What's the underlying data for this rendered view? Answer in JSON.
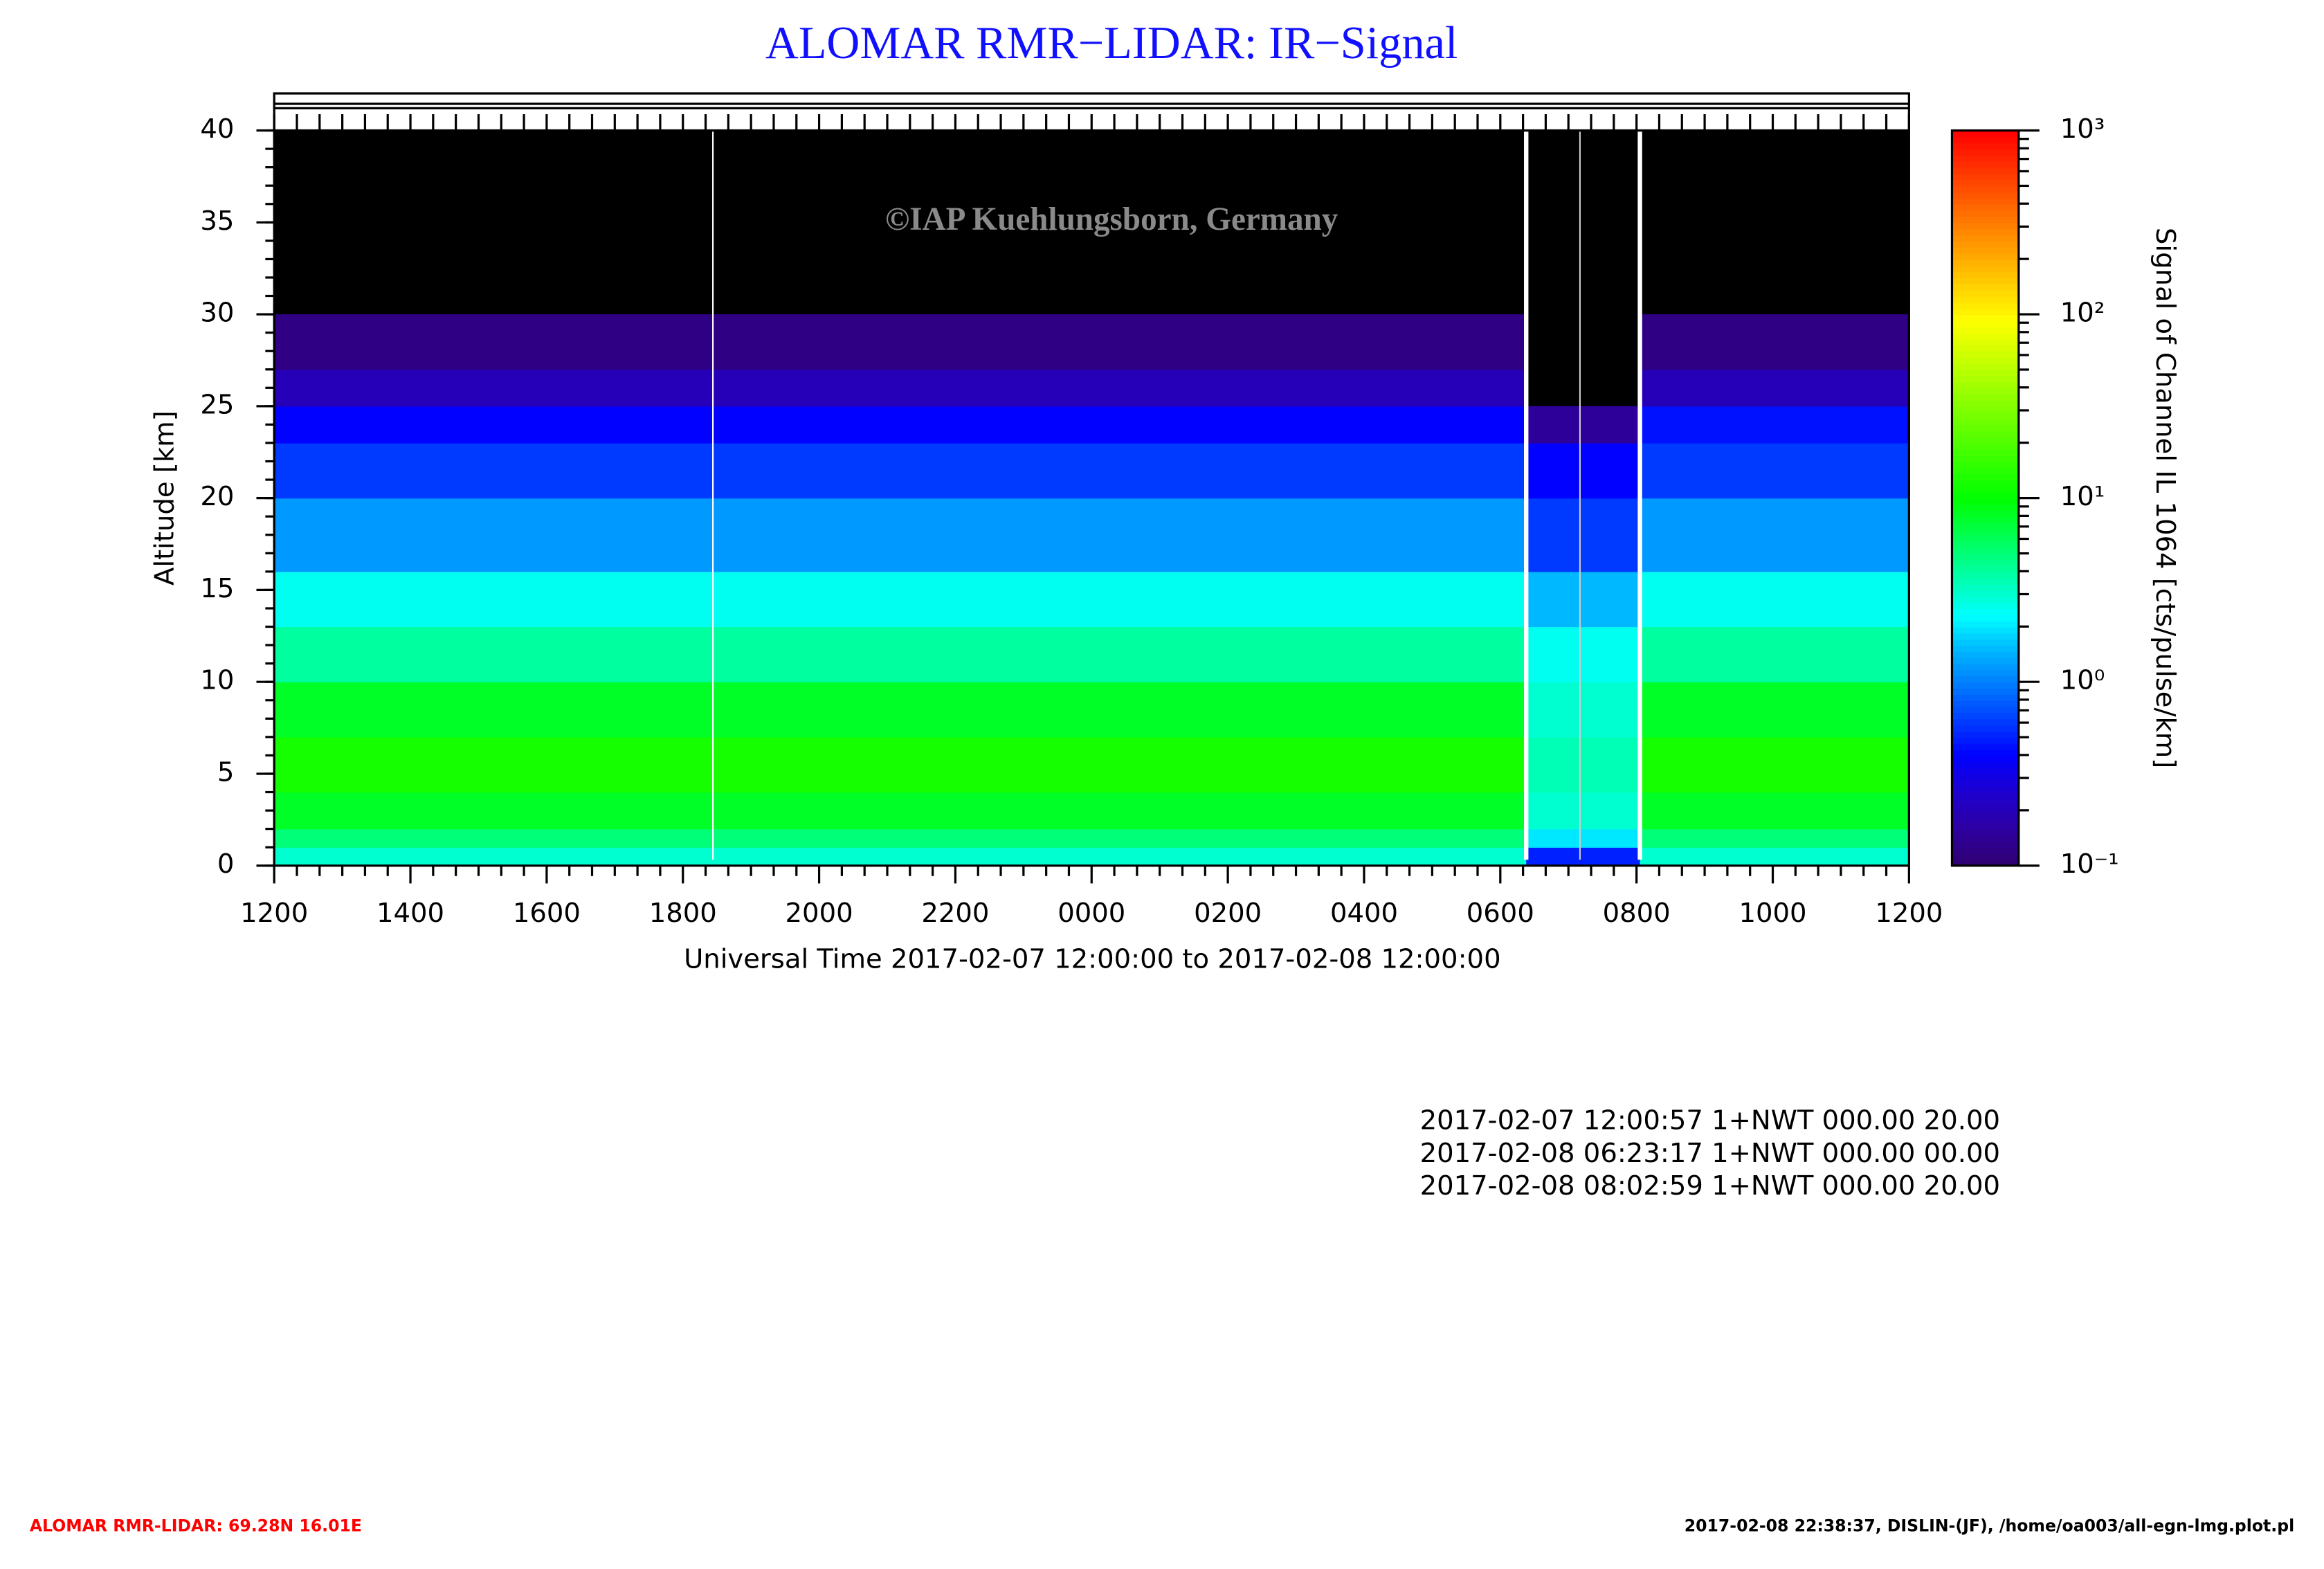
{
  "chart_data": {
    "type": "heatmap",
    "title": "ALOMAR RMR−LIDAR: IR−Signal",
    "watermark": "©IAP Kuehlungsborn, Germany",
    "x_label": "Universal Time 2017-02-07 12:00:00 to 2017-02-08 12:00:00",
    "y_label": "Altitude [km]",
    "colorbar_label": "Signal of Channel IL 1064 [cts/pulse/km]",
    "xlim": [
      0,
      24
    ],
    "xticks": [
      {
        "value": 0,
        "label": "1200"
      },
      {
        "value": 2,
        "label": "1400"
      },
      {
        "value": 4,
        "label": "1600"
      },
      {
        "value": 6,
        "label": "1800"
      },
      {
        "value": 8,
        "label": "2000"
      },
      {
        "value": 10,
        "label": "2200"
      },
      {
        "value": 12,
        "label": "0000"
      },
      {
        "value": 14,
        "label": "0200"
      },
      {
        "value": 16,
        "label": "0400"
      },
      {
        "value": 18,
        "label": "0600"
      },
      {
        "value": 20,
        "label": "0800"
      },
      {
        "value": 22,
        "label": "1000"
      },
      {
        "value": 24,
        "label": "1200"
      }
    ],
    "ylim": [
      0,
      40
    ],
    "yticks": [
      0,
      5,
      10,
      15,
      20,
      25,
      30,
      35,
      40
    ],
    "clim": [
      0.1,
      1000
    ],
    "log_color": true,
    "cticks": [
      {
        "value": 0.1,
        "label": "10⁻¹"
      },
      {
        "value": 1,
        "label": "10⁰"
      },
      {
        "value": 10,
        "label": "10¹"
      },
      {
        "value": 100,
        "label": "10²"
      },
      {
        "value": 1000,
        "label": "10³"
      }
    ],
    "x": [
      0,
      18.38,
      20.05,
      24
    ],
    "y": [
      0,
      1,
      2,
      4,
      7,
      10,
      13,
      16,
      20,
      23,
      25,
      27,
      30,
      40
    ],
    "z": [
      [
        3,
        0.5,
        3
      ],
      [
        5,
        2,
        5
      ],
      [
        8,
        3,
        8
      ],
      [
        12,
        3.5,
        12
      ],
      [
        8,
        3,
        8
      ],
      [
        4,
        2.5,
        4
      ],
      [
        2.5,
        1.5,
        2.5
      ],
      [
        1.2,
        0.6,
        1.2
      ],
      [
        0.6,
        0.4,
        0.6
      ],
      [
        0.4,
        0.15,
        0.45
      ],
      [
        0.2,
        null,
        0.2
      ],
      [
        0.12,
        null,
        0.12
      ],
      [
        null,
        null,
        null
      ]
    ],
    "annotations": [
      "2017-02-07 12:00:57 1+NWT 000.00 20.00",
      "2017-02-08 06:23:17 1+NWT 000.00 00.00",
      "2017-02-08 08:02:59 1+NWT 000.00 20.00"
    ]
  },
  "footer": {
    "left": "ALOMAR RMR-LIDAR: 69.28N 16.01E",
    "right": "2017-02-08 22:38:37, DISLIN-(JF), /home/oa003/all-egn-lmg.plot.pl"
  }
}
